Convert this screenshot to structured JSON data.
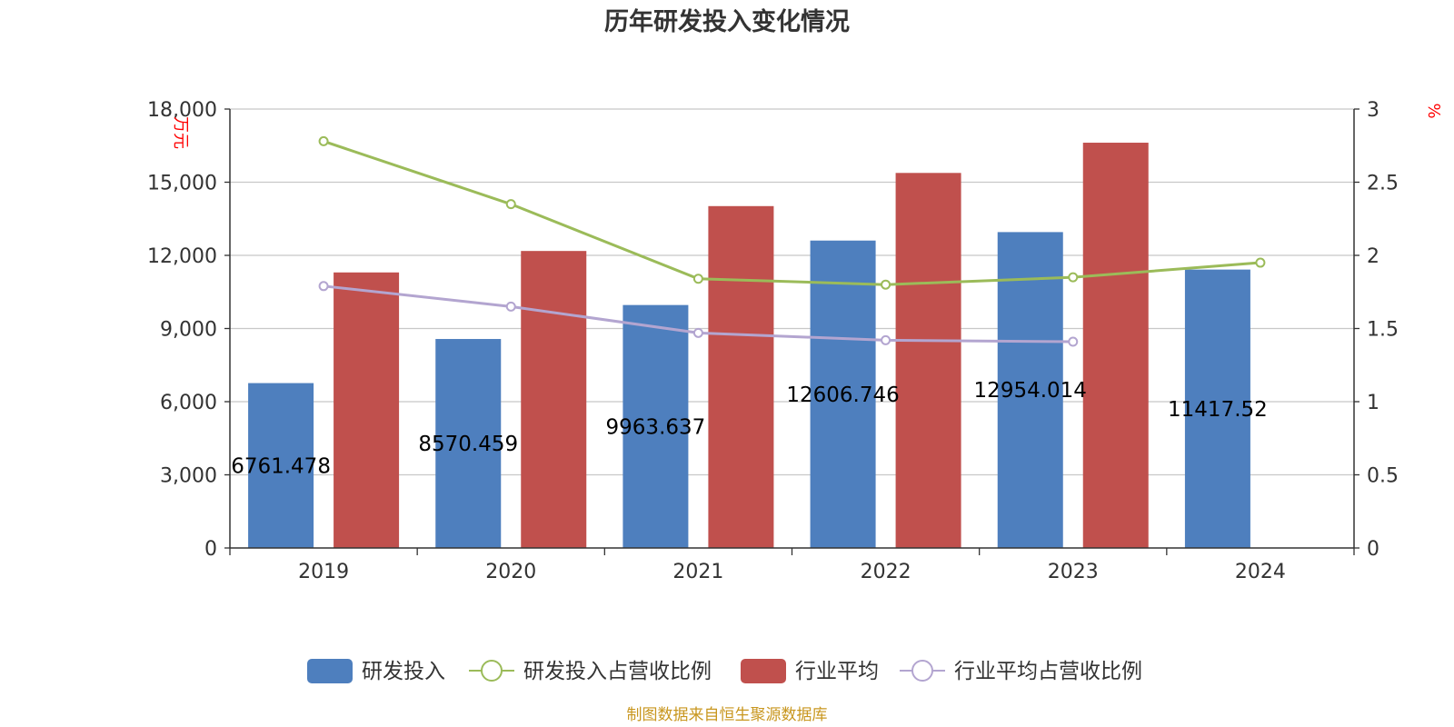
{
  "chart_data": {
    "type": "bar",
    "title": "历年研发投入变化情况",
    "categories": [
      "2019",
      "2020",
      "2021",
      "2022",
      "2023",
      "2024"
    ],
    "y_left": {
      "label": "万元",
      "ylim": [
        0,
        18000
      ],
      "ticks": [
        0,
        3000,
        6000,
        9000,
        12000,
        15000,
        18000
      ],
      "tick_labels": [
        "0",
        "3,000",
        "6,000",
        "9,000",
        "12,000",
        "15,000",
        "18,000"
      ]
    },
    "y_right": {
      "label": "%",
      "ylim": [
        0,
        3
      ],
      "ticks": [
        0,
        0.5,
        1,
        1.5,
        2,
        2.5,
        3
      ],
      "tick_labels": [
        "0",
        "0.5",
        "1",
        "1.5",
        "2",
        "2.5",
        "3"
      ]
    },
    "series": [
      {
        "name": "研发投入",
        "type": "bar",
        "axis": "left",
        "color": "#4e7fbe",
        "values": [
          6761.478,
          8570.459,
          9963.637,
          12606.746,
          12954.014,
          11417.52
        ],
        "labels": [
          "6761.478",
          "8570.459",
          "9963.637",
          "12606.746",
          "12954.014",
          "11417.52"
        ]
      },
      {
        "name": "研发投入占营收比例",
        "type": "line",
        "axis": "right",
        "color": "#9bbb59",
        "values": [
          2.78,
          2.35,
          1.84,
          1.8,
          1.85,
          1.95
        ]
      },
      {
        "name": "行业平均",
        "type": "bar",
        "axis": "left",
        "color": "#c0504d",
        "values": [
          11300,
          12180,
          14020,
          15380,
          16620,
          null
        ]
      },
      {
        "name": "行业平均占营收比例",
        "type": "line",
        "axis": "right",
        "color": "#b3a5d0",
        "values": [
          1.79,
          1.65,
          1.47,
          1.42,
          1.41,
          null
        ]
      }
    ],
    "grid": true,
    "legend_position": "bottom-center"
  },
  "source_note": "制图数据来自恒生聚源数据库"
}
